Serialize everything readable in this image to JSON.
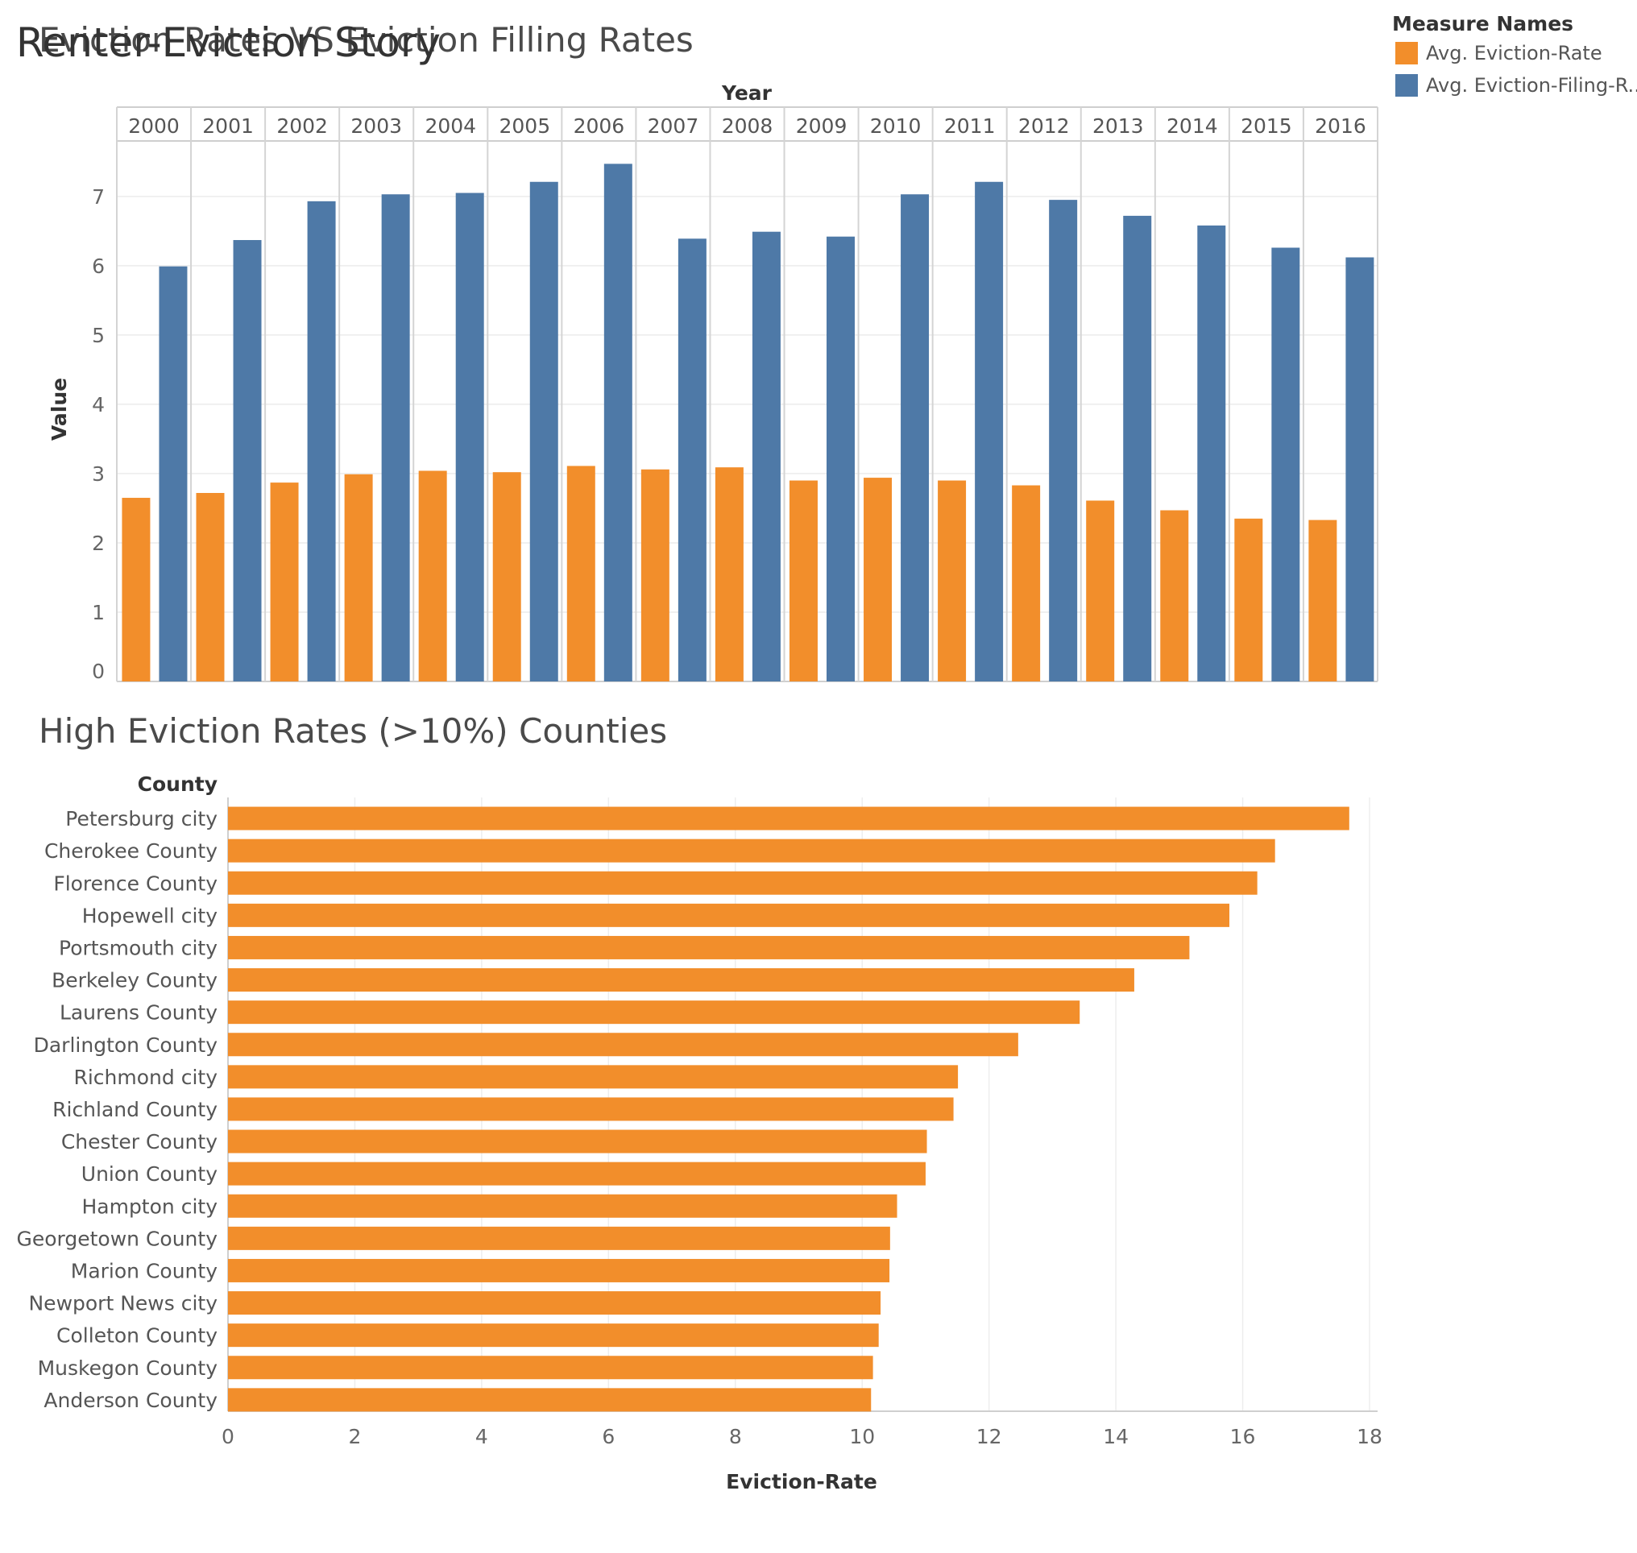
{
  "story_title": "Renter-Eviction Story",
  "legend": {
    "title": "Measure Names",
    "items": [
      {
        "label": "Avg. Eviction-Rate",
        "color": "#f28e2b"
      },
      {
        "label": "Avg. Eviction-Filing-R..",
        "color": "#4e79a7"
      }
    ]
  },
  "chart_data": [
    {
      "type": "bar",
      "title": "Eviction Rates VS Eviction Filling Rates",
      "xlabel": "Year",
      "ylabel": "Value",
      "categories": [
        "2000",
        "2001",
        "2002",
        "2003",
        "2004",
        "2005",
        "2006",
        "2007",
        "2008",
        "2009",
        "2010",
        "2011",
        "2012",
        "2013",
        "2014",
        "2015",
        "2016"
      ],
      "ylim": [
        0,
        7.8
      ],
      "yticks": [
        0,
        1,
        2,
        3,
        4,
        5,
        6,
        7
      ],
      "grid": true,
      "legend_position": "top-right",
      "series": [
        {
          "name": "Avg. Eviction-Rate",
          "color": "#f28e2b",
          "values": [
            2.65,
            2.72,
            2.87,
            2.99,
            3.04,
            3.02,
            3.11,
            3.06,
            3.09,
            2.9,
            2.94,
            2.9,
            2.83,
            2.61,
            2.47,
            2.35,
            2.33
          ]
        },
        {
          "name": "Avg. Eviction-Filing-R..",
          "color": "#4e79a7",
          "values": [
            5.99,
            6.37,
            6.93,
            7.03,
            7.05,
            7.21,
            7.47,
            6.39,
            6.49,
            6.42,
            7.03,
            7.21,
            6.95,
            6.72,
            6.58,
            6.26,
            6.12
          ]
        }
      ]
    },
    {
      "type": "bar",
      "orientation": "horizontal",
      "title": "High Eviction Rates (>10%) Counties",
      "ylabel": "County",
      "xlabel": "Eviction-Rate",
      "xlim": [
        0,
        18
      ],
      "xticks": [
        0,
        2,
        4,
        6,
        8,
        10,
        12,
        14,
        16,
        18
      ],
      "grid": true,
      "color": "#f28e2b",
      "categories": [
        "Petersburg city",
        "Cherokee County",
        "Florence County",
        "Hopewell city",
        "Portsmouth city",
        "Berkeley County",
        "Laurens County",
        "Darlington County",
        "Richmond city",
        "Richland County",
        "Chester County",
        "Union County",
        "Hampton city",
        "Georgetown County",
        "Marion County",
        "Newport News city",
        "Colleton County",
        "Muskegon County",
        "Anderson County"
      ],
      "values": [
        17.68,
        16.51,
        16.23,
        15.79,
        15.16,
        14.29,
        13.43,
        12.46,
        11.51,
        11.44,
        11.02,
        11.0,
        10.55,
        10.44,
        10.43,
        10.29,
        10.26,
        10.17,
        10.14
      ]
    }
  ]
}
